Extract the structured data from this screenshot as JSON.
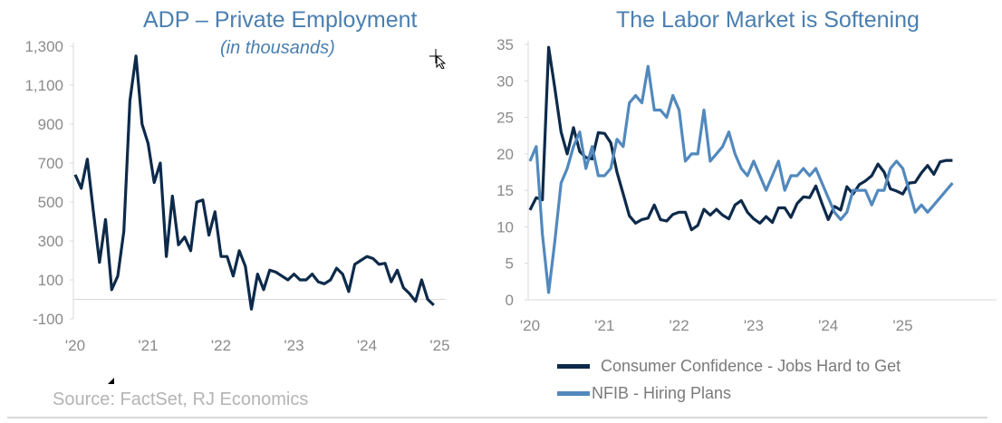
{
  "source": "Source: FactSet, RJ Economics",
  "colors": {
    "dark": "#0d2a4a",
    "light": "#5289bd",
    "title": "#4a7fb0",
    "axis": "#d9d9d9",
    "tick": "#8a8a8a"
  },
  "chart_data": [
    {
      "type": "line",
      "title": "ADP – Private Employment",
      "subtitle": "(in thousands)",
      "ylim": [
        -100,
        1300
      ],
      "yticks": [
        "1,300",
        "1,100",
        "900",
        "700",
        "500",
        "300",
        "100",
        "-100"
      ],
      "ytick_values": [
        1300,
        1100,
        900,
        700,
        500,
        300,
        100,
        -100
      ],
      "xticks": [
        "'20",
        "'21",
        "'22",
        "'23",
        "'24",
        "'25"
      ],
      "x_start": "2020-01",
      "x_freq": "monthly",
      "grid": false,
      "series": [
        {
          "color": "#0d2a4a",
          "values": [
            640,
            570,
            720,
            450,
            190,
            410,
            50,
            120,
            350,
            1020,
            1250,
            900,
            800,
            600,
            700,
            220,
            530,
            280,
            320,
            250,
            500,
            510,
            330,
            450,
            220,
            220,
            120,
            250,
            170,
            -50,
            130,
            50,
            150,
            140,
            120,
            100,
            130,
            100,
            100,
            130,
            90,
            80,
            100,
            160,
            130,
            40,
            180,
            200,
            220,
            210,
            180,
            185,
            90,
            150,
            60,
            30,
            -10,
            100,
            0,
            -30
          ]
        }
      ]
    },
    {
      "type": "line",
      "title": "The Labor Market is Softening",
      "ylim": [
        0,
        35
      ],
      "yticks": [
        "35",
        "30",
        "25",
        "20",
        "15",
        "10",
        "5",
        "0"
      ],
      "ytick_values": [
        35,
        30,
        25,
        20,
        15,
        10,
        5,
        0
      ],
      "xticks": [
        "'20",
        "'21",
        "'22",
        "'23",
        "'24",
        "'25"
      ],
      "x_start": "2020-01",
      "x_freq": "monthly",
      "grid": false,
      "legend": "bottom",
      "series": [
        {
          "name": "Consumer Confidence - Jobs Hard to Get",
          "color": "#0d2a4a",
          "values": [
            12.3,
            14,
            13.7,
            34.6,
            29,
            23,
            20,
            23.6,
            20.3,
            19.5,
            19.3,
            22.9,
            22.8,
            21.5,
            17.5,
            14.5,
            11.5,
            10.5,
            11,
            11.2,
            13,
            11,
            10.8,
            11.7,
            12,
            12,
            9.6,
            10.2,
            12.4,
            11.6,
            12.4,
            11.6,
            11.1,
            13,
            13.6,
            12,
            11.1,
            10.5,
            11.4,
            10.6,
            12.6,
            12.6,
            11.3,
            13.2,
            14.1,
            14,
            15.6,
            13.2,
            11,
            12.8,
            12.3,
            15.5,
            14.5,
            15.8,
            16.3,
            17,
            18.6,
            17.5,
            15.2,
            14.9,
            14.5,
            16,
            16.1,
            17.4,
            18.4,
            17.2,
            18.9,
            19.1,
            19.1
          ]
        },
        {
          "name": "NFIB - Hiring Plans",
          "color": "#5289bd",
          "values": [
            19,
            21,
            9,
            1,
            8,
            16,
            18,
            21,
            23,
            18,
            21,
            17,
            17,
            18,
            22,
            21,
            27,
            28,
            27,
            32,
            26,
            26,
            25,
            28,
            26,
            19,
            20,
            20,
            26,
            19,
            20,
            21,
            23,
            20,
            18,
            17,
            19,
            17,
            15,
            17,
            19,
            15,
            17,
            17,
            18,
            17,
            18,
            16,
            14,
            12,
            11,
            12,
            15,
            15,
            15,
            13,
            15,
            15,
            18,
            19,
            18,
            15,
            12,
            13,
            12,
            13,
            14,
            15,
            16
          ]
        }
      ]
    }
  ]
}
